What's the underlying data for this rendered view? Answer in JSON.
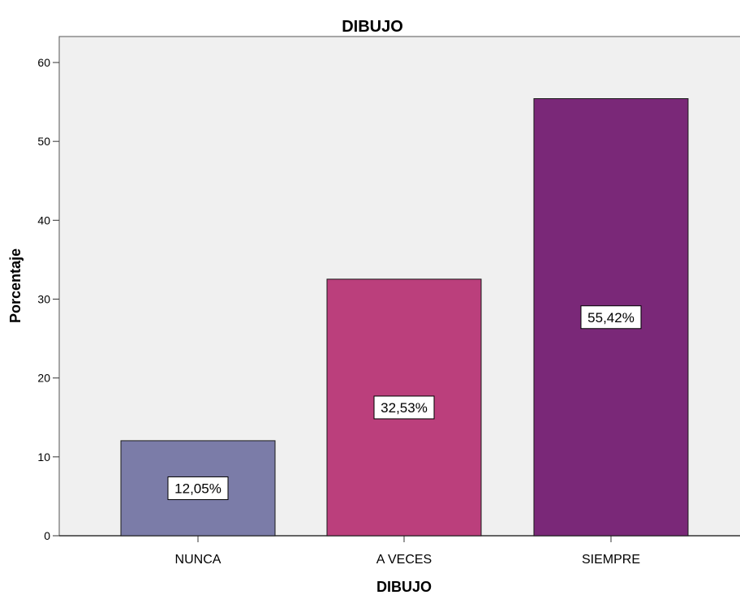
{
  "chart_data": {
    "type": "bar",
    "title": "DIBUJO",
    "xlabel": "DIBUJO",
    "ylabel": "Porcentaje",
    "categories": [
      "NUNCA",
      "A VECES",
      "SIEMPRE"
    ],
    "values": [
      12.05,
      32.53,
      55.42
    ],
    "data_labels": [
      "12,05%",
      "32,53%",
      "55,42%"
    ],
    "colors": [
      "#7b7ca8",
      "#bb3f7c",
      "#7a2878"
    ],
    "ylim": [
      0,
      60
    ],
    "yticks": [
      0,
      10,
      20,
      30,
      40,
      50,
      60
    ],
    "grid": false,
    "legend": "none",
    "plot_background": "#f0f0f0"
  }
}
